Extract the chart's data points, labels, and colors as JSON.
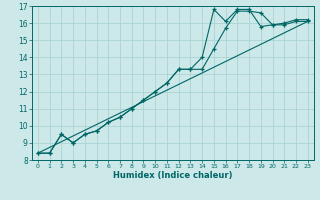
{
  "xlabel": "Humidex (Indice chaleur)",
  "bg_color": "#cce8e8",
  "grid_color": "#aad4d4",
  "line_color": "#006666",
  "xlim": [
    -0.5,
    23.5
  ],
  "ylim": [
    8,
    17
  ],
  "xticks": [
    0,
    1,
    2,
    3,
    4,
    5,
    6,
    7,
    8,
    9,
    10,
    11,
    12,
    13,
    14,
    15,
    16,
    17,
    18,
    19,
    20,
    21,
    22,
    23
  ],
  "yticks": [
    8,
    9,
    10,
    11,
    12,
    13,
    14,
    15,
    16,
    17
  ],
  "line1_x": [
    0,
    1,
    2,
    3,
    4,
    5,
    6,
    7,
    8,
    9,
    10,
    11,
    12,
    13,
    14,
    15,
    16,
    17,
    18,
    19,
    20,
    21,
    22,
    23
  ],
  "line1_y": [
    8.4,
    8.4,
    9.5,
    9.0,
    9.5,
    9.7,
    10.2,
    10.5,
    11.0,
    11.5,
    12.0,
    12.5,
    13.3,
    13.3,
    13.3,
    14.5,
    15.7,
    16.7,
    16.7,
    16.6,
    15.9,
    15.9,
    16.1,
    16.1
  ],
  "line2_x": [
    0,
    1,
    2,
    3,
    4,
    5,
    6,
    7,
    8,
    9,
    10,
    11,
    12,
    13,
    14,
    15,
    16,
    17,
    18,
    19,
    20,
    21,
    22,
    23
  ],
  "line2_y": [
    8.4,
    8.4,
    9.5,
    9.0,
    9.5,
    9.7,
    10.2,
    10.5,
    11.0,
    11.5,
    12.0,
    12.5,
    13.3,
    13.3,
    14.0,
    16.8,
    16.1,
    16.8,
    16.8,
    15.8,
    15.9,
    16.0,
    16.2,
    16.2
  ],
  "line3_x": [
    0,
    23
  ],
  "line3_y": [
    8.4,
    16.1
  ]
}
